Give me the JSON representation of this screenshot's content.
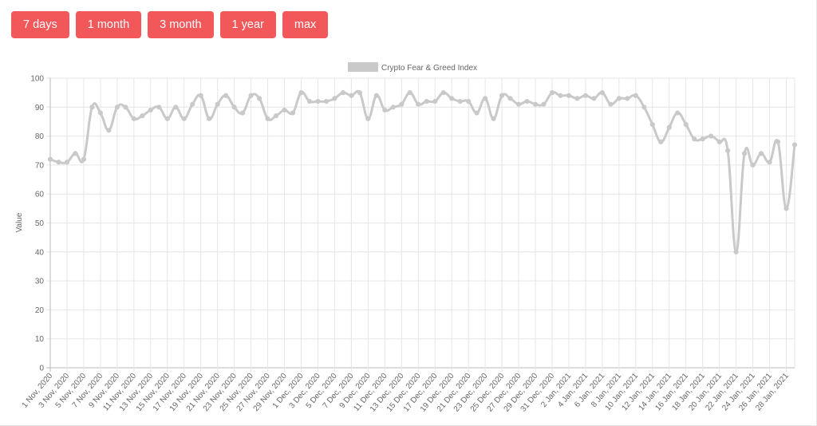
{
  "range_buttons": [
    {
      "label": "7 days"
    },
    {
      "label": "1 month"
    },
    {
      "label": "3 month"
    },
    {
      "label": "1 year"
    },
    {
      "label": "max"
    }
  ],
  "chart_data": {
    "type": "line",
    "title": "",
    "xlabel": "",
    "ylabel": "Value",
    "ylim": [
      0,
      100
    ],
    "y_ticks": [
      0,
      10,
      20,
      30,
      40,
      50,
      60,
      70,
      80,
      90,
      100
    ],
    "grid": true,
    "legend_position": "top-center",
    "series_color": "#c9c9c9",
    "x_tick_labels": [
      "1 Nov, 2020",
      "3 Nov, 2020",
      "5 Nov, 2020",
      "7 Nov, 2020",
      "9 Nov, 2020",
      "11 Nov, 2020",
      "13 Nov, 2020",
      "15 Nov, 2020",
      "17 Nov, 2020",
      "19 Nov, 2020",
      "21 Nov, 2020",
      "23 Nov, 2020",
      "25 Nov, 2020",
      "27 Nov, 2020",
      "29 Nov, 2020",
      "1 Dec, 2020",
      "3 Dec, 2020",
      "5 Dec, 2020",
      "7 Dec, 2020",
      "9 Dec, 2020",
      "11 Dec, 2020",
      "13 Dec, 2020",
      "15 Dec, 2020",
      "17 Dec, 2020",
      "19 Dec, 2020",
      "21 Dec, 2020",
      "23 Dec, 2020",
      "25 Dec, 2020",
      "27 Dec, 2020",
      "29 Dec, 2020",
      "31 Dec, 2020",
      "2 Jan, 2021",
      "4 Jan, 2021",
      "6 Jan, 2021",
      "8 Jan, 2021",
      "10 Jan, 2021",
      "12 Jan, 2021",
      "14 Jan, 2021",
      "16 Jan, 2021",
      "18 Jan, 2021",
      "20 Jan, 2021",
      "22 Jan, 2021",
      "24 Jan, 2021",
      "26 Jan, 2021",
      "28 Jan, 2021"
    ],
    "series": [
      {
        "name": "Crypto Fear & Greed Index",
        "x": [
          "1 Nov, 2020",
          "2 Nov, 2020",
          "3 Nov, 2020",
          "4 Nov, 2020",
          "5 Nov, 2020",
          "6 Nov, 2020",
          "7 Nov, 2020",
          "8 Nov, 2020",
          "9 Nov, 2020",
          "10 Nov, 2020",
          "11 Nov, 2020",
          "12 Nov, 2020",
          "13 Nov, 2020",
          "14 Nov, 2020",
          "15 Nov, 2020",
          "16 Nov, 2020",
          "17 Nov, 2020",
          "18 Nov, 2020",
          "19 Nov, 2020",
          "20 Nov, 2020",
          "21 Nov, 2020",
          "22 Nov, 2020",
          "23 Nov, 2020",
          "24 Nov, 2020",
          "25 Nov, 2020",
          "26 Nov, 2020",
          "27 Nov, 2020",
          "28 Nov, 2020",
          "29 Nov, 2020",
          "30 Nov, 2020",
          "1 Dec, 2020",
          "2 Dec, 2020",
          "3 Dec, 2020",
          "4 Dec, 2020",
          "5 Dec, 2020",
          "6 Dec, 2020",
          "7 Dec, 2020",
          "8 Dec, 2020",
          "9 Dec, 2020",
          "10 Dec, 2020",
          "11 Dec, 2020",
          "12 Dec, 2020",
          "13 Dec, 2020",
          "14 Dec, 2020",
          "15 Dec, 2020",
          "16 Dec, 2020",
          "17 Dec, 2020",
          "18 Dec, 2020",
          "19 Dec, 2020",
          "20 Dec, 2020",
          "21 Dec, 2020",
          "22 Dec, 2020",
          "23 Dec, 2020",
          "24 Dec, 2020",
          "25 Dec, 2020",
          "26 Dec, 2020",
          "27 Dec, 2020",
          "28 Dec, 2020",
          "29 Dec, 2020",
          "30 Dec, 2020",
          "31 Dec, 2020",
          "1 Jan, 2021",
          "2 Jan, 2021",
          "3 Jan, 2021",
          "4 Jan, 2021",
          "5 Jan, 2021",
          "6 Jan, 2021",
          "7 Jan, 2021",
          "8 Jan, 2021",
          "9 Jan, 2021",
          "10 Jan, 2021",
          "11 Jan, 2021",
          "12 Jan, 2021",
          "13 Jan, 2021",
          "14 Jan, 2021",
          "15 Jan, 2021",
          "16 Jan, 2021",
          "17 Jan, 2021",
          "18 Jan, 2021",
          "19 Jan, 2021",
          "20 Jan, 2021",
          "21 Jan, 2021",
          "22 Jan, 2021",
          "23 Jan, 2021",
          "24 Jan, 2021",
          "25 Jan, 2021",
          "26 Jan, 2021",
          "27 Jan, 2021",
          "28 Jan, 2021",
          "29 Jan, 2021"
        ],
        "values": [
          72,
          71,
          71,
          74,
          72,
          90,
          88,
          82,
          90,
          90,
          86,
          87,
          89,
          90,
          86,
          90,
          86,
          91,
          94,
          86,
          91,
          94,
          90,
          88,
          94,
          93,
          86,
          87,
          89,
          88,
          95,
          92,
          92,
          92,
          93,
          95,
          94,
          95,
          86,
          94,
          89,
          90,
          91,
          95,
          91,
          92,
          92,
          95,
          93,
          92,
          92,
          88,
          93,
          86,
          94,
          93,
          91,
          92,
          91,
          91,
          95,
          94,
          94,
          93,
          94,
          93,
          95,
          91,
          93,
          93,
          94,
          90,
          84,
          78,
          83,
          88,
          84,
          79,
          79,
          80,
          78,
          75,
          40,
          74,
          70,
          74,
          71,
          78,
          55,
          77
        ]
      }
    ]
  }
}
